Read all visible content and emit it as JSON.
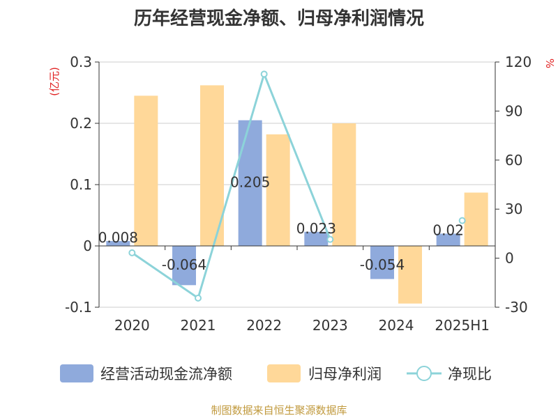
{
  "title": "历年经营现金净额、归母净利润情况",
  "source": "制图数据来自恒生聚源数据库",
  "colors": {
    "cash_bar": "#8faadc",
    "profit_bar": "#ffd899",
    "ratio_line": "#8cd3d9",
    "axis_label_red": "#e02020"
  },
  "chart_data": {
    "type": "bar",
    "categories": [
      "2020",
      "2021",
      "2022",
      "2023",
      "2024",
      "2025H1"
    ],
    "y_left_unit": "(亿元)",
    "y_right_unit": "%",
    "y_left_ticks": [
      "0.3",
      "0.2",
      "0.1",
      "0",
      "-0.1"
    ],
    "y_right_ticks": [
      "120",
      "90",
      "60",
      "30",
      "0",
      "-30"
    ],
    "ylim_left": [
      -0.1,
      0.3
    ],
    "ylim_right": [
      -30,
      120
    ],
    "grid": true,
    "legend_position": "bottom",
    "series": [
      {
        "name": "经营活动现金流净额",
        "type": "bar",
        "axis": "left",
        "values": [
          0.008,
          -0.064,
          0.205,
          0.023,
          -0.054,
          0.02
        ],
        "labels": [
          "0.008",
          "-0.064",
          "0.205",
          "0.023",
          "-0.054",
          "0.02"
        ]
      },
      {
        "name": "归母净利润",
        "type": "bar",
        "axis": "left",
        "values": [
          0.245,
          0.262,
          0.182,
          0.2,
          -0.094,
          0.087
        ]
      },
      {
        "name": "净现比",
        "type": "line",
        "axis": "right",
        "values": [
          3.3,
          -24.4,
          112.6,
          11.5,
          null,
          23.0
        ]
      }
    ]
  }
}
